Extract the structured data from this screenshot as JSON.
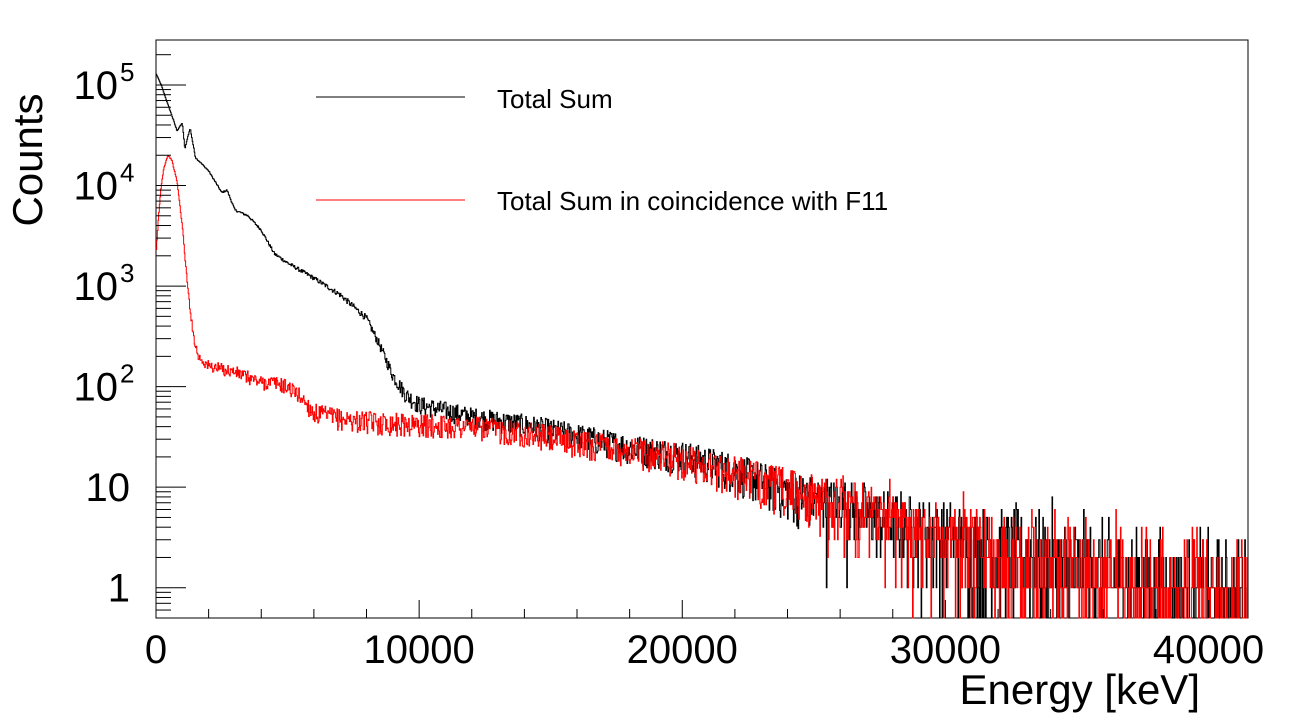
{
  "chart_data": {
    "type": "line",
    "title": "",
    "xlabel": "Energy [keV]",
    "ylabel": "Counts",
    "xlim": [
      0,
      41500
    ],
    "ylim": [
      0.5,
      280000
    ],
    "y_scale": "log",
    "grid": false,
    "legend_placement": "top-center",
    "x_ticks": [
      "0",
      "10000",
      "20000",
      "30000",
      "40000"
    ],
    "x_tick_values": [
      0,
      10000,
      20000,
      30000,
      40000
    ],
    "y_ticks": [
      {
        "value": 1,
        "base": "1",
        "exp": ""
      },
      {
        "value": 10,
        "base": "10",
        "exp": ""
      },
      {
        "value": 100,
        "base": "10",
        "exp": "2"
      },
      {
        "value": 1000,
        "base": "10",
        "exp": "3"
      },
      {
        "value": 10000,
        "base": "10",
        "exp": "4"
      },
      {
        "value": 100000,
        "base": "10",
        "exp": "5"
      }
    ],
    "series": [
      {
        "name": "Total Sum",
        "color": "#000000",
        "x": [
          0,
          200,
          400,
          600,
          800,
          1000,
          1100,
          1200,
          1300,
          1500,
          2000,
          2500,
          2700,
          3000,
          3500,
          4000,
          4500,
          5000,
          6000,
          7000,
          8000,
          8500,
          9000,
          9500,
          10000,
          11000,
          12000,
          14000,
          16000,
          18000,
          20000,
          22000,
          24000,
          26000,
          28000,
          30000,
          32000,
          34000,
          36000,
          38000,
          40000,
          41500
        ],
        "y": [
          130000,
          100000,
          70000,
          50000,
          35000,
          42000,
          23000,
          30000,
          37000,
          19000,
          14000,
          8500,
          9000,
          5700,
          5000,
          3600,
          2100,
          1700,
          1200,
          820,
          480,
          260,
          130,
          83,
          66,
          58,
          50,
          42,
          33,
          25,
          21,
          15,
          9.4,
          7,
          4.7,
          3.5,
          2.6,
          2,
          1.5,
          1.2,
          0.9,
          0.8
        ]
      },
      {
        "name": "Total Sum in coincidence with F11",
        "color": "#ff0000",
        "x": [
          0,
          100,
          200,
          300,
          450,
          600,
          800,
          1000,
          1200,
          1400,
          1600,
          2000,
          3000,
          4000,
          4500,
          5000,
          5500,
          6000,
          7000,
          8000,
          10000,
          12000,
          14000,
          16000,
          18000,
          20000,
          22000,
          24000,
          26000,
          28000,
          30000,
          32000,
          34000,
          36000,
          38000,
          40000,
          41500
        ],
        "y": [
          2000,
          5000,
          10000,
          15000,
          20000,
          18000,
          11000,
          4000,
          1000,
          350,
          200,
          160,
          140,
          110,
          110,
          100,
          80,
          55,
          48,
          45,
          42,
          40,
          35,
          28,
          24,
          19,
          14,
          10,
          7,
          5,
          3.5,
          2.5,
          2,
          1.5,
          1.2,
          1,
          0.9
        ]
      }
    ]
  }
}
